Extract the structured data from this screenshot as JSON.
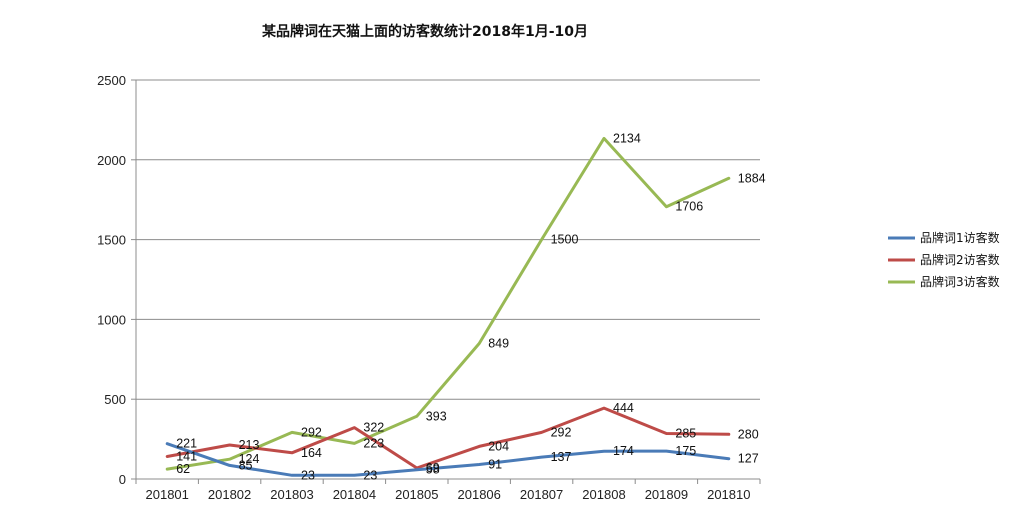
{
  "chart_data": {
    "type": "line",
    "title": "某品牌词在天猫上面的访客数统计2018年1月-10月",
    "xlabel": "",
    "ylabel": "",
    "categories": [
      "201801",
      "201802",
      "201803",
      "201804",
      "201805",
      "201806",
      "201807",
      "201808",
      "201809",
      "201810"
    ],
    "ylim": [
      0,
      2500
    ],
    "yticks": [
      0,
      500,
      1000,
      1500,
      2000,
      2500
    ],
    "grid": true,
    "legend_position": "right",
    "series": [
      {
        "name": "品牌词1访客数",
        "color": "#4a7bb7",
        "values": [
          221,
          85,
          23,
          23,
          58,
          91,
          137,
          174,
          175,
          127
        ]
      },
      {
        "name": "品牌词2访客数",
        "color": "#be4b48",
        "values": [
          141,
          213,
          164,
          322,
          69,
          204,
          292,
          444,
          285,
          280
        ]
      },
      {
        "name": "品牌词3访客数",
        "color": "#98b954",
        "values": [
          62,
          124,
          292,
          223,
          393,
          849,
          1500,
          2134,
          1706,
          1884
        ]
      }
    ]
  }
}
